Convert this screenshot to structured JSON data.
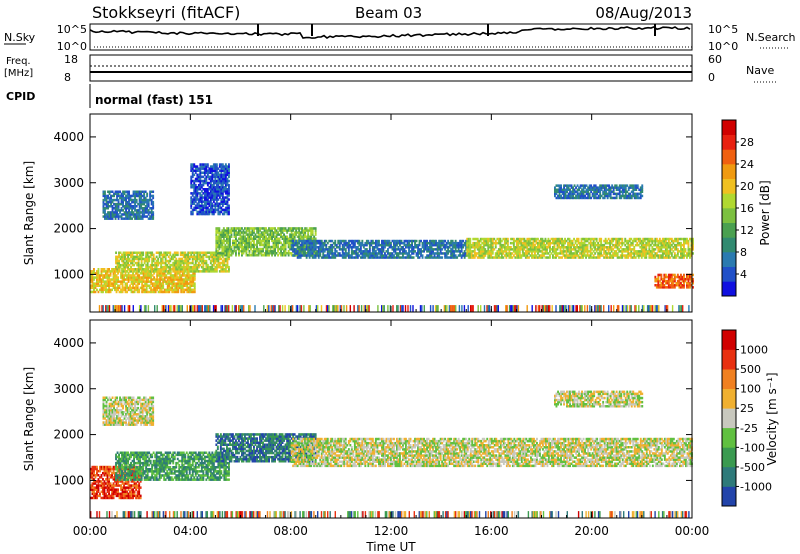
{
  "header": {
    "title": "Stokkseyri (fitACF)",
    "beam": "Beam 03",
    "date": "08/Aug/2013"
  },
  "top_panels": {
    "noise": {
      "left_label": "N.Sky",
      "left_ticks": [
        "10^5",
        "10^0"
      ],
      "right_ticks": [
        "10^5",
        "10^0"
      ],
      "right_label": "N.Search"
    },
    "freq": {
      "left_label_1": "Freq.",
      "left_label_2": "[MHz]",
      "left_ticks": [
        "18",
        "8"
      ],
      "right_ticks": [
        "60",
        "0"
      ],
      "right_label": "Nave"
    },
    "cpid": {
      "label": "CPID",
      "text": "normal (fast) 151"
    }
  },
  "chart_data": [
    {
      "type": "heatmap",
      "title": "",
      "xlabel": "Time UT",
      "ylabel": "Slant Range [km]",
      "x_ticks": [
        "00:00",
        "04:00",
        "08:00",
        "12:00",
        "16:00",
        "20:00",
        "00:00"
      ],
      "xlim": [
        0,
        24
      ],
      "y_ticks": [
        1000,
        2000,
        3000,
        4000
      ],
      "ylim": [
        180,
        4500
      ],
      "colorbar": {
        "label": "Power [dB]",
        "ticks": [
          "4",
          "8",
          "12",
          "16",
          "20",
          "24",
          "28"
        ],
        "colors": [
          "#1010e0",
          "#2050c8",
          "#2a7ab0",
          "#318a70",
          "#4aa050",
          "#7cc040",
          "#b0d830",
          "#f0c020",
          "#f09a10",
          "#f06010",
          "#e82010",
          "#d00000"
        ]
      },
      "bands": [
        {
          "t0": 0.0,
          "t1": 4.2,
          "r0": 600,
          "r1": 1100,
          "level": 7
        },
        {
          "t0": 1.0,
          "t1": 5.5,
          "r0": 1050,
          "r1": 1500,
          "level": 6
        },
        {
          "t0": 5.0,
          "t1": 9.0,
          "r0": 1400,
          "r1": 2000,
          "level": 5
        },
        {
          "t0": 0.5,
          "t1": 2.5,
          "r0": 2200,
          "r1": 2800,
          "level": 2
        },
        {
          "t0": 4.0,
          "t1": 5.5,
          "r0": 2300,
          "r1": 3400,
          "level": 1
        },
        {
          "t0": 8.0,
          "t1": 15.0,
          "r0": 1350,
          "r1": 1750,
          "level": 2
        },
        {
          "t0": 15.0,
          "t1": 24.0,
          "r0": 1350,
          "r1": 1800,
          "level": 6
        },
        {
          "t0": 18.5,
          "t1": 22.0,
          "r0": 2650,
          "r1": 2950,
          "level": 2
        },
        {
          "t0": 22.5,
          "t1": 24.0,
          "r0": 700,
          "r1": 1000,
          "level": 9
        }
      ]
    },
    {
      "type": "heatmap",
      "title": "",
      "xlabel": "Time UT",
      "ylabel": "Slant Range [km]",
      "x_ticks": [
        "00:00",
        "04:00",
        "08:00",
        "12:00",
        "16:00",
        "20:00",
        "00:00"
      ],
      "xlim": [
        0,
        24
      ],
      "y_ticks": [
        1000,
        2000,
        3000,
        4000
      ],
      "ylim": [
        180,
        4500
      ],
      "colorbar": {
        "label": "Velocity [m s⁻¹]",
        "ticks": [
          "1000",
          "500",
          "100",
          "25",
          "-25",
          "-100",
          "-500",
          "-1000"
        ],
        "colors": [
          "#2244aa",
          "#2e7a7a",
          "#3a9a50",
          "#60c040",
          "#c8c8be",
          "#f0b030",
          "#f08020",
          "#e83010",
          "#d00000"
        ]
      },
      "bands": [
        {
          "t0": 0.0,
          "t1": 2.0,
          "r0": 600,
          "r1": 1300,
          "level": 7
        },
        {
          "t0": 1.0,
          "t1": 5.5,
          "r0": 1000,
          "r1": 1600,
          "level": 2
        },
        {
          "t0": 5.0,
          "t1": 9.0,
          "r0": 1400,
          "r1": 2000,
          "level": 1
        },
        {
          "t0": 8.0,
          "t1": 24.0,
          "r0": 1300,
          "r1": 1900,
          "level": 4
        },
        {
          "t0": 0.5,
          "t1": 2.5,
          "r0": 2200,
          "r1": 2800,
          "level": 4
        },
        {
          "t0": 18.5,
          "t1": 22.0,
          "r0": 2600,
          "r1": 2950,
          "level": 4
        }
      ]
    }
  ]
}
